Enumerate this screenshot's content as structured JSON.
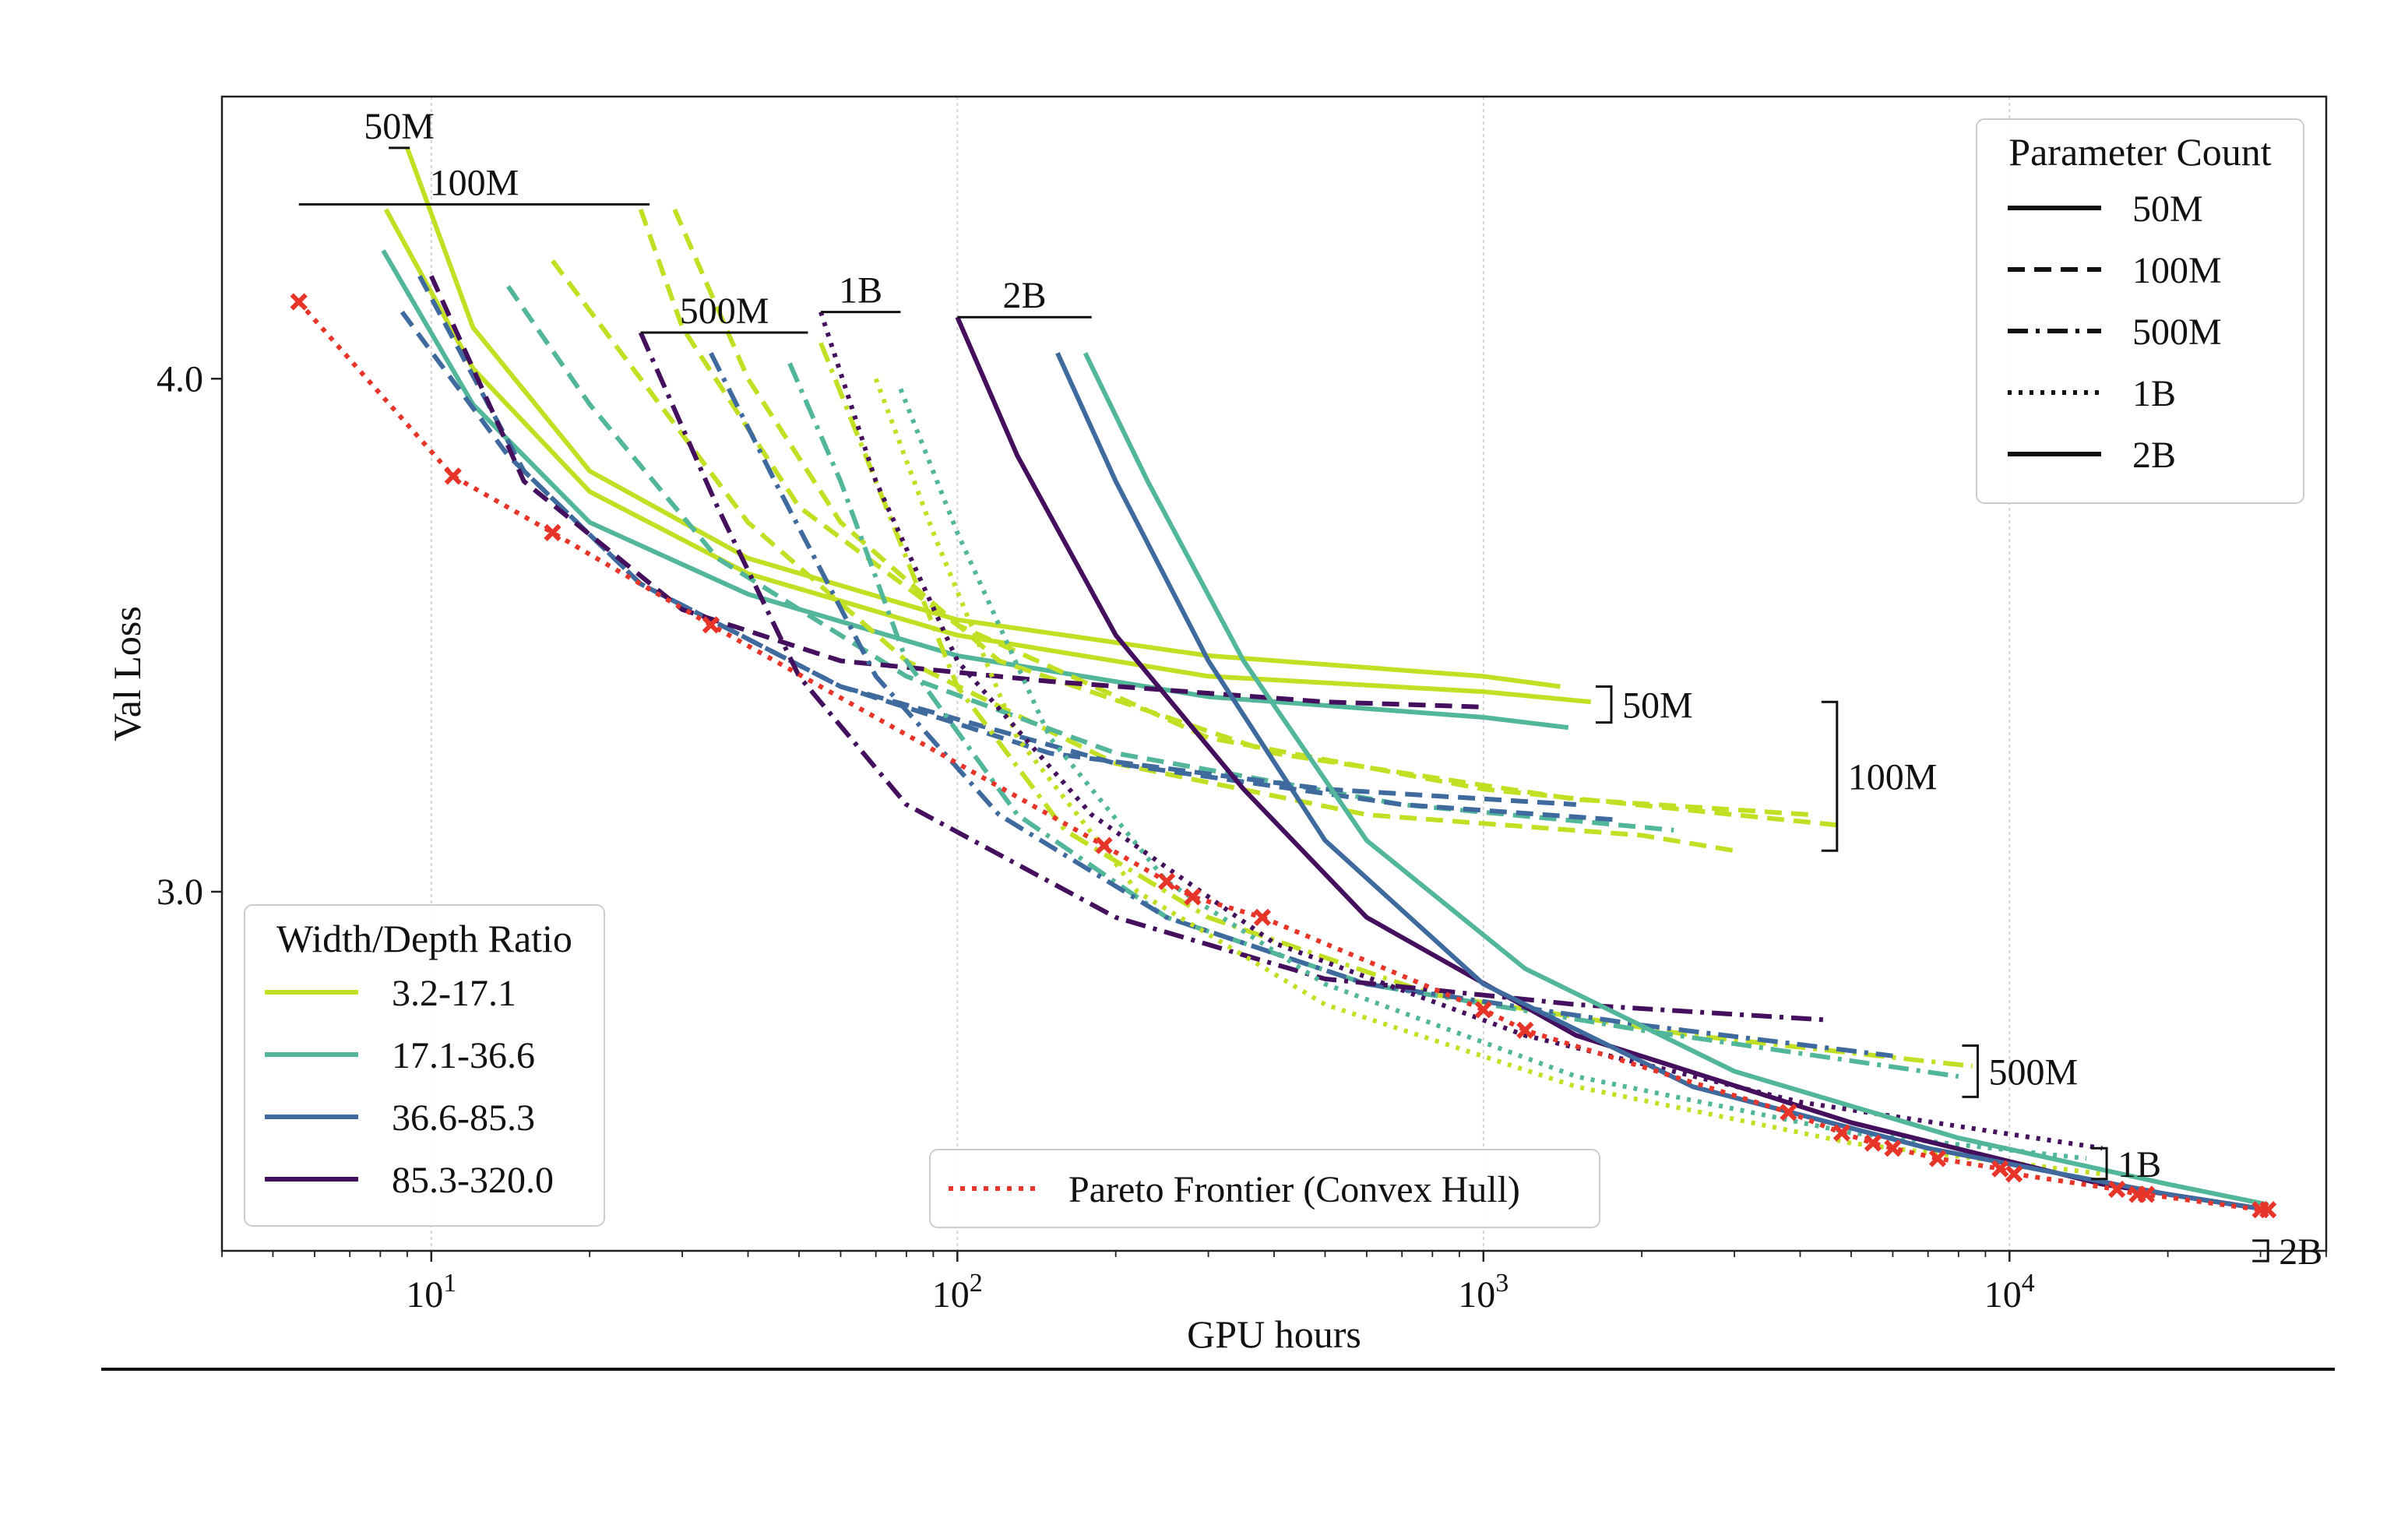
{
  "chart_data": {
    "type": "line",
    "xlabel": "GPU hours",
    "ylabel": "Val Loss",
    "xscale": "log",
    "xlim": [
      4,
      40000
    ],
    "ylim": [
      2.3,
      4.55
    ],
    "x_ticks": [
      {
        "value": 10,
        "base": "10",
        "exp": "1"
      },
      {
        "value": 100,
        "base": "10",
        "exp": "2"
      },
      {
        "value": 1000,
        "base": "10",
        "exp": "3"
      },
      {
        "value": 10000,
        "base": "10",
        "exp": "4"
      }
    ],
    "y_ticks": [
      {
        "value": 3.0,
        "label": "3.0"
      },
      {
        "value": 4.0,
        "label": "4.0"
      }
    ],
    "grid": "x-major, dotted",
    "colors": {
      "ratio_3_2_17_1": "#c2df23",
      "ratio_17_1_36_6": "#52b69a",
      "ratio_36_6_85_3": "#3e6a9e",
      "ratio_85_3_320_0": "#440f5c",
      "pareto": "#e8352a"
    },
    "param_legend": {
      "title": "Parameter Count",
      "position": "top-right",
      "entries": [
        {
          "label": "50M",
          "dash": "solid"
        },
        {
          "label": "100M",
          "dash": "dashed"
        },
        {
          "label": "500M",
          "dash": "dashdot"
        },
        {
          "label": "1B",
          "dash": "dotted"
        },
        {
          "label": "2B",
          "dash": "solid"
        }
      ]
    },
    "ratio_legend": {
      "title": "Width/Depth Ratio",
      "position": "lower-left",
      "entries": [
        {
          "label": "3.2-17.1",
          "color": "#c2df23"
        },
        {
          "label": "17.1-36.6",
          "color": "#52b69a"
        },
        {
          "label": "36.6-85.3",
          "color": "#3e6a9e"
        },
        {
          "label": "85.3-320.0",
          "color": "#440f5c"
        }
      ]
    },
    "pareto_legend": {
      "label": "Pareto Frontier (Convex Hull)",
      "position": "bottom-center"
    },
    "top_group_labels": [
      {
        "label": "50M",
        "x_start": 8.3,
        "x_end": 9.1,
        "y": 4.45
      },
      {
        "label": "100M",
        "x_start": 5.6,
        "x_end": 26,
        "y": 4.34
      },
      {
        "label": "500M",
        "x_start": 25,
        "x_end": 52,
        "y": 4.09
      },
      {
        "label": "1B",
        "x_start": 55,
        "x_end": 78,
        "y": 4.13
      },
      {
        "label": "2B",
        "x_start": 100,
        "x_end": 180,
        "y": 4.12
      }
    ],
    "end_group_labels": [
      {
        "label": "50M",
        "x": 1750,
        "y_top": 3.4,
        "y_bottom": 3.33
      },
      {
        "label": "100M",
        "x": 4700,
        "y_top": 3.37,
        "y_bottom": 3.08
      },
      {
        "label": "500M",
        "x": 8700,
        "y_top": 2.7,
        "y_bottom": 2.6
      },
      {
        "label": "1B",
        "x": 15300,
        "y_top": 2.5,
        "y_bottom": 2.44
      },
      {
        "label": "2B",
        "x": 31000,
        "y_top": 2.32,
        "y_bottom": 2.28
      }
    ],
    "pareto_frontier": {
      "name": "Pareto Frontier (Convex Hull)",
      "x": [
        5.6,
        11,
        17,
        34,
        190,
        250,
        280,
        380,
        1000,
        1200,
        3800,
        4800,
        5500,
        6000,
        7300,
        9600,
        10200,
        16000,
        17500,
        18200,
        30000,
        31000
      ],
      "y": [
        4.15,
        3.81,
        3.7,
        3.52,
        3.09,
        3.02,
        2.99,
        2.95,
        2.77,
        2.73,
        2.57,
        2.53,
        2.51,
        2.5,
        2.48,
        2.46,
        2.45,
        2.42,
        2.41,
        2.41,
        2.38,
        2.38
      ]
    },
    "series": [
      {
        "param": "50M",
        "ratio": "3.2-17.1",
        "x": [
          9,
          12,
          20,
          40,
          100,
          300,
          1000,
          1400
        ],
        "y": [
          4.45,
          4.1,
          3.82,
          3.65,
          3.53,
          3.46,
          3.42,
          3.4
        ]
      },
      {
        "param": "50M",
        "ratio": "3.2-17.1",
        "x": [
          8.2,
          12,
          20,
          40,
          100,
          300,
          1000,
          1600
        ],
        "y": [
          4.33,
          4.02,
          3.78,
          3.62,
          3.5,
          3.42,
          3.39,
          3.37
        ]
      },
      {
        "param": "50M",
        "ratio": "17.1-36.6",
        "x": [
          8.1,
          12,
          20,
          40,
          100,
          300,
          1000,
          1450
        ],
        "y": [
          4.25,
          3.95,
          3.72,
          3.58,
          3.46,
          3.38,
          3.34,
          3.32
        ]
      },
      {
        "param": "100M",
        "ratio": "3.2-17.1",
        "x": [
          25,
          30,
          50,
          100,
          300,
          1000,
          3000,
          4700
        ],
        "y": [
          4.33,
          4.1,
          3.75,
          3.52,
          3.3,
          3.2,
          3.15,
          3.13
        ]
      },
      {
        "param": "100M",
        "ratio": "3.2-17.1",
        "x": [
          17,
          25,
          40,
          80,
          200,
          600,
          2000,
          3000
        ],
        "y": [
          4.23,
          4.0,
          3.72,
          3.45,
          3.25,
          3.15,
          3.11,
          3.08
        ]
      },
      {
        "param": "100M",
        "ratio": "3.2-17.1",
        "x": [
          29,
          40,
          60,
          120,
          400,
          1500,
          4200
        ],
        "y": [
          4.33,
          4.0,
          3.72,
          3.45,
          3.27,
          3.18,
          3.15
        ]
      },
      {
        "param": "100M",
        "ratio": "17.1-36.6",
        "x": [
          14,
          20,
          35,
          80,
          200,
          700,
          2300
        ],
        "y": [
          4.18,
          3.95,
          3.65,
          3.42,
          3.27,
          3.17,
          3.12
        ]
      },
      {
        "param": "100M",
        "ratio": "36.6-85.3",
        "x": [
          8.8,
          14,
          25,
          60,
          150,
          500,
          1500
        ],
        "y": [
          4.13,
          3.85,
          3.6,
          3.4,
          3.27,
          3.2,
          3.17
        ]
      },
      {
        "param": "100M",
        "ratio": "36.6-85.3",
        "x": [
          9.5,
          15,
          25,
          60,
          200,
          700,
          1800
        ],
        "y": [
          4.2,
          3.82,
          3.6,
          3.4,
          3.25,
          3.17,
          3.14
        ]
      },
      {
        "param": "100M",
        "ratio": "85.3-320.0",
        "x": [
          10,
          15,
          30,
          60,
          150,
          500,
          1000
        ],
        "y": [
          4.2,
          3.8,
          3.55,
          3.45,
          3.41,
          3.37,
          3.36
        ]
      },
      {
        "param": "500M",
        "ratio": "3.2-17.1",
        "x": [
          55,
          70,
          100,
          160,
          300,
          800,
          2500,
          8500
        ],
        "y": [
          4.07,
          3.8,
          3.4,
          3.12,
          2.95,
          2.8,
          2.72,
          2.66
        ]
      },
      {
        "param": "500M",
        "ratio": "17.1-36.6",
        "x": [
          48,
          60,
          80,
          130,
          250,
          600,
          2000,
          8000
        ],
        "y": [
          4.03,
          3.8,
          3.45,
          3.15,
          2.95,
          2.82,
          2.73,
          2.64
        ]
      },
      {
        "param": "500M",
        "ratio": "36.6-85.3",
        "x": [
          34,
          45,
          70,
          120,
          250,
          600,
          2000,
          6000
        ],
        "y": [
          4.05,
          3.8,
          3.42,
          3.15,
          2.95,
          2.82,
          2.74,
          2.68
        ]
      },
      {
        "param": "500M",
        "ratio": "85.3-320.0",
        "x": [
          25,
          35,
          50,
          80,
          200,
          500,
          1500,
          4500
        ],
        "y": [
          4.09,
          3.75,
          3.42,
          3.17,
          2.95,
          2.83,
          2.78,
          2.75
        ]
      },
      {
        "param": "1B",
        "ratio": "3.2-17.1",
        "x": [
          70,
          90,
          130,
          220,
          500,
          1500,
          5000,
          15000
        ],
        "y": [
          4.0,
          3.7,
          3.3,
          3.0,
          2.78,
          2.62,
          2.51,
          2.45
        ]
      },
      {
        "param": "1B",
        "ratio": "17.1-36.6",
        "x": [
          78,
          100,
          150,
          250,
          500,
          1500,
          5000,
          14000
        ],
        "y": [
          3.98,
          3.7,
          3.3,
          3.02,
          2.82,
          2.64,
          2.53,
          2.48
        ]
      },
      {
        "param": "1B",
        "ratio": "85.3-320.0",
        "x": [
          55,
          70,
          100,
          180,
          400,
          1200,
          4000,
          15000
        ],
        "y": [
          4.13,
          3.8,
          3.45,
          3.15,
          2.9,
          2.72,
          2.59,
          2.5
        ]
      },
      {
        "param": "2B",
        "ratio": "85.3-320.0",
        "x": [
          100,
          130,
          200,
          350,
          600,
          1500,
          5000,
          15000,
          31000
        ],
        "y": [
          4.12,
          3.85,
          3.5,
          3.2,
          2.95,
          2.72,
          2.55,
          2.43,
          2.38
        ]
      },
      {
        "param": "2B",
        "ratio": "36.6-85.3",
        "x": [
          155,
          200,
          300,
          500,
          1000,
          2500,
          7000,
          20000,
          31000
        ],
        "y": [
          4.05,
          3.8,
          3.45,
          3.1,
          2.82,
          2.62,
          2.5,
          2.41,
          2.38
        ]
      },
      {
        "param": "2B",
        "ratio": "17.1-36.6",
        "x": [
          175,
          230,
          350,
          600,
          1200,
          3000,
          8000,
          20000,
          31000
        ],
        "y": [
          4.05,
          3.8,
          3.45,
          3.1,
          2.85,
          2.65,
          2.52,
          2.43,
          2.39
        ]
      }
    ]
  }
}
